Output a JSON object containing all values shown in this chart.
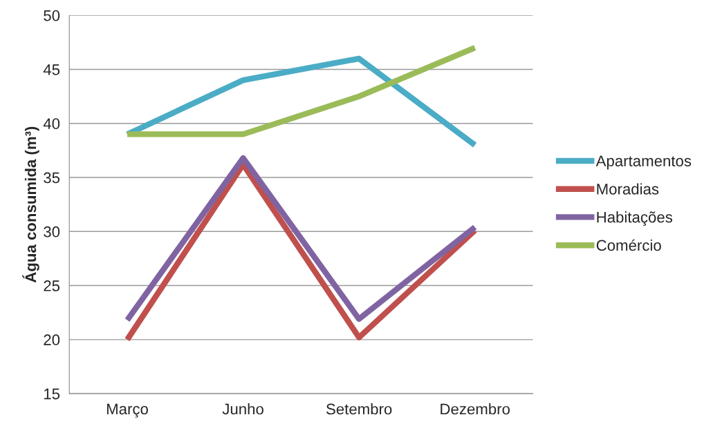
{
  "chart_data": {
    "type": "line",
    "ylabel": "Água consumida (m³)",
    "categories": [
      "Março",
      "Junho",
      "Setembro",
      "Dezembro"
    ],
    "series": [
      {
        "name": "Apartamentos",
        "color": "#4bacc6",
        "values": [
          39,
          44,
          46,
          38
        ]
      },
      {
        "name": "Moradias",
        "color": "#c0504d",
        "values": [
          20,
          36.2,
          20.2,
          30.1
        ]
      },
      {
        "name": "Habitações",
        "color": "#8064a2",
        "values": [
          21.8,
          36.8,
          21.9,
          30.4
        ]
      },
      {
        "name": "Comércio",
        "color": "#9bbb59",
        "values": [
          39,
          39,
          42.5,
          47
        ]
      }
    ],
    "ylim": [
      15,
      50
    ],
    "yticks": [
      15,
      20,
      25,
      30,
      35,
      40,
      45,
      50
    ],
    "grid": "y",
    "legend": "right",
    "marker": "none",
    "line_style": "solid"
  }
}
